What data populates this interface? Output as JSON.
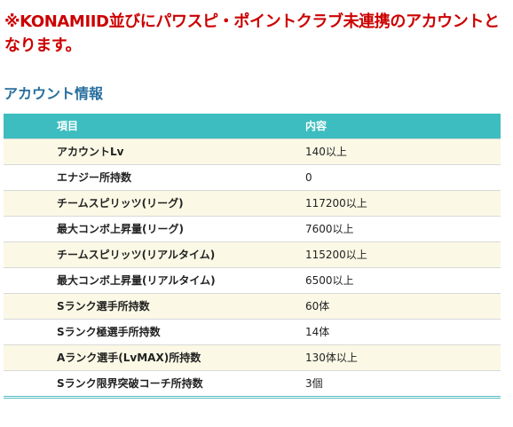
{
  "notice": "※KONAMIID並びにパワスピ・ポイントクラブ未連携のアカウントとなります。",
  "section_title": "アカウント情報",
  "table": {
    "headers": [
      "項目",
      "内容"
    ],
    "rows": [
      [
        "アカウントLv",
        "140以上"
      ],
      [
        "エナジー所持数",
        "0"
      ],
      [
        "チームスピリッツ(リーグ)",
        "117200以上"
      ],
      [
        "最大コンボ上昇量(リーグ)",
        "7600以上"
      ],
      [
        "チームスピリッツ(リアルタイム)",
        "115200以上"
      ],
      [
        "最大コンボ上昇量(リアルタイム)",
        "6500以上"
      ],
      [
        "Sランク選手所持数",
        "60体"
      ],
      [
        "Sランク極選手所持数",
        "14体"
      ],
      [
        "Aランク選手(LvMAX)所持数",
        "130体以上"
      ],
      [
        "Sランク限界突破コーチ所持数",
        "3個"
      ]
    ]
  },
  "colors": {
    "notice": "#cc0000",
    "section_title": "#2a6f9e",
    "header_bg": "#3dbdbf",
    "row_odd_bg": "#fbf9e6",
    "row_even_bg": "#ffffff"
  }
}
